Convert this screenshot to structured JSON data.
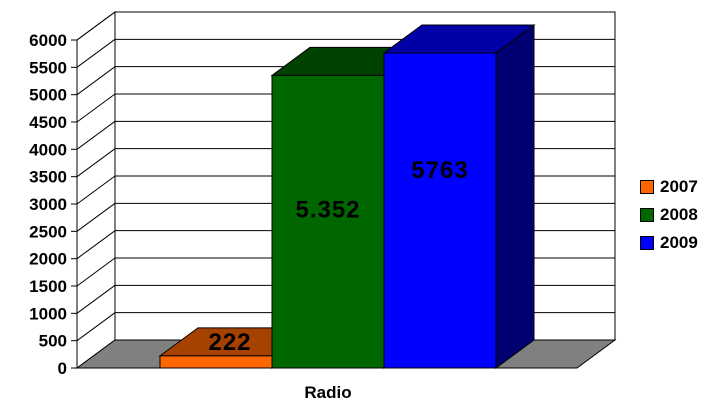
{
  "chart_data": {
    "type": "bar",
    "categories": [
      "Radio"
    ],
    "series": [
      {
        "name": "2007",
        "values": [
          222
        ],
        "label": "222",
        "color": "#FF6600"
      },
      {
        "name": "2008",
        "values": [
          5352
        ],
        "label": "5.352",
        "color": "#006600"
      },
      {
        "name": "2009",
        "values": [
          5763
        ],
        "label": "5763",
        "color": "#0000FF"
      }
    ],
    "title": "",
    "xlabel": "Radio",
    "ylabel": "",
    "ylim": [
      0,
      6000
    ],
    "yticks": [
      "0",
      "500",
      "1000",
      "1500",
      "2000",
      "2500",
      "3000",
      "3500",
      "4000",
      "4500",
      "5000",
      "5500",
      "6000"
    ],
    "grid": true,
    "three_d": true,
    "legend_position": "right",
    "floor_color": "#808080"
  }
}
